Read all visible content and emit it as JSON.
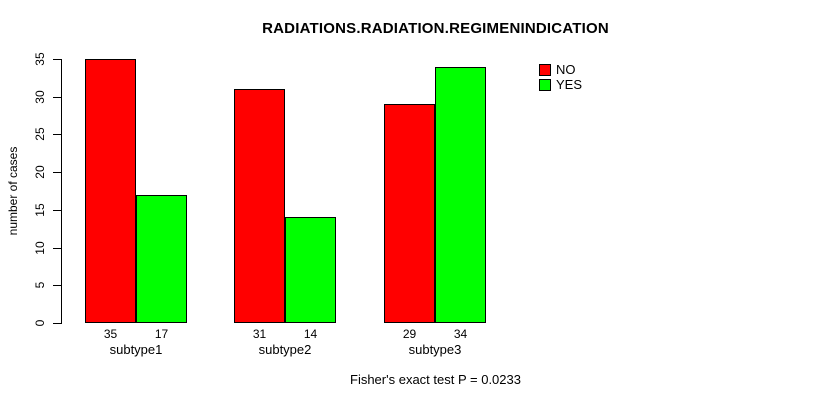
{
  "title": "RADIATIONS.RADIATION.REGIMENINDICATION",
  "annotation": "Fisher's exact test P = 0.0233",
  "axes": {
    "ylabel": "number of cases"
  },
  "legend": {
    "items": [
      {
        "label": "NO",
        "color": "#ff0000"
      },
      {
        "label": "YES",
        "color": "#00ff00"
      }
    ]
  },
  "chart_data": {
    "type": "bar",
    "grouped": true,
    "categories": [
      "subtype1",
      "subtype2",
      "subtype3"
    ],
    "series": [
      {
        "name": "NO",
        "color": "#ff0000",
        "values": [
          35,
          31,
          29
        ]
      },
      {
        "name": "YES",
        "color": "#00ff00",
        "values": [
          17,
          14,
          34
        ]
      }
    ],
    "bar_value_labels": [
      [
        35,
        17
      ],
      [
        31,
        14
      ],
      [
        29,
        34
      ]
    ],
    "title": "RADIATIONS.RADIATION.REGIMENINDICATION",
    "xlabel": "",
    "ylabel": "number of cases",
    "ylim": [
      0,
      35
    ],
    "yticks": [
      0,
      5,
      10,
      15,
      20,
      25,
      30,
      35
    ],
    "grid": false,
    "legend_position": "top-right",
    "annotation": "Fisher's exact test P = 0.0233",
    "bar_border_color": "#000000"
  }
}
